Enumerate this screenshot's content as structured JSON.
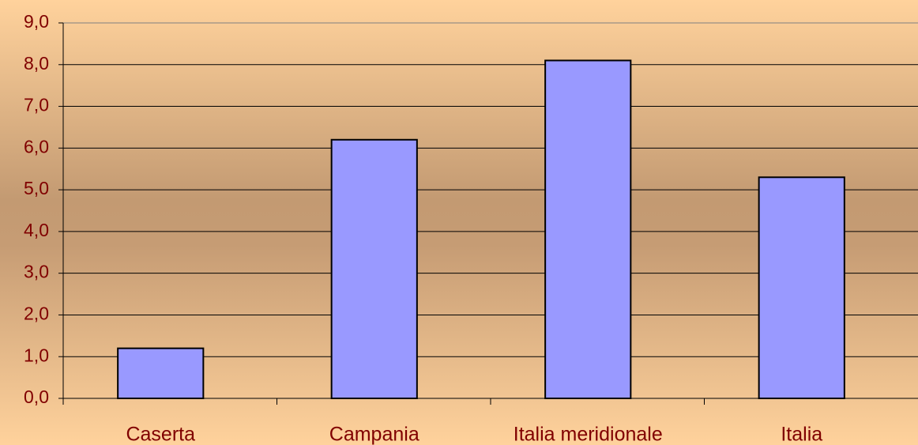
{
  "chart_data": {
    "type": "bar",
    "categories": [
      "Caserta",
      "Campania",
      "Italia meridionale",
      "Italia"
    ],
    "values": [
      1.2,
      6.2,
      8.1,
      5.3
    ],
    "color": "#9999ff",
    "ylim": [
      0,
      9
    ],
    "yticks": [
      {
        "value": 0,
        "label": "0,0"
      },
      {
        "value": 1,
        "label": "1,0"
      },
      {
        "value": 2,
        "label": "2,0"
      },
      {
        "value": 3,
        "label": "3,0"
      },
      {
        "value": 4,
        "label": "4,0"
      },
      {
        "value": 5,
        "label": "5,0"
      },
      {
        "value": 6,
        "label": "6,0"
      },
      {
        "value": 7,
        "label": "7,0"
      },
      {
        "value": 8,
        "label": "8,0"
      },
      {
        "value": 9,
        "label": "9,0"
      }
    ],
    "grid": true
  }
}
